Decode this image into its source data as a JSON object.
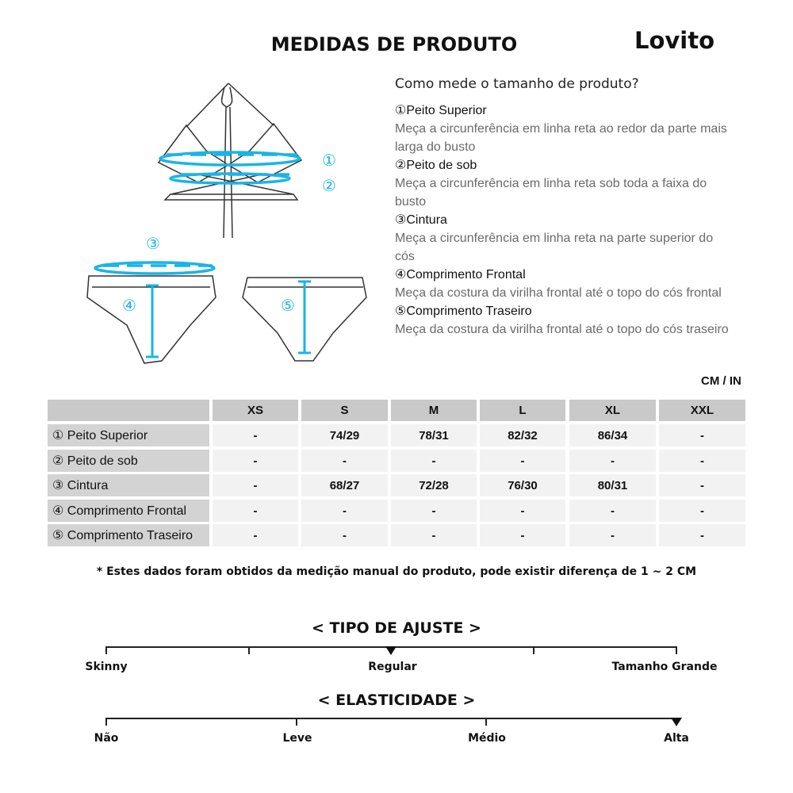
{
  "title": "MEDIDAS DE PRODUTO",
  "brand": "Lovito",
  "guide": {
    "question": "Como mede o tamanho de produto?",
    "items": [
      {
        "name": "①Peito Superior",
        "desc": "Meça a circunferência em linha reta ao redor da parte mais larga do busto"
      },
      {
        "name": "②Peito de sob",
        "desc": "Meça a circunferência em linha reta sob toda a faixa do busto"
      },
      {
        "name": "③Cintura",
        "desc": "Meça a circunferência em linha reta na parte superior do cós"
      },
      {
        "name": "④Comprimento Frontal",
        "desc": "Meça da costura da virilha frontal até o topo do cós frontal"
      },
      {
        "name": "⑤Comprimento Traseiro",
        "desc": "Meça da costura da virilha frontal até o topo do cós traseiro"
      }
    ]
  },
  "diagram_markers": [
    "①",
    "②",
    "③",
    "④",
    "⑤"
  ],
  "unit": "CM / IN",
  "table": {
    "columns": [
      "XS",
      "S",
      "M",
      "L",
      "XL",
      "XXL"
    ],
    "rows": [
      {
        "label": "① Peito Superior",
        "values": [
          "-",
          "74/29",
          "78/31",
          "82/32",
          "86/34",
          "-"
        ]
      },
      {
        "label": "② Peito de sob",
        "values": [
          "-",
          "-",
          "-",
          "-",
          "-",
          "-"
        ]
      },
      {
        "label": "③ Cintura",
        "values": [
          "-",
          "68/27",
          "72/28",
          "76/30",
          "80/31",
          "-"
        ]
      },
      {
        "label": "④ Comprimento Frontal",
        "values": [
          "-",
          "-",
          "-",
          "-",
          "-",
          "-"
        ]
      },
      {
        "label": "⑤ Comprimento Traseiro",
        "values": [
          "-",
          "-",
          "-",
          "-",
          "-",
          "-"
        ]
      }
    ]
  },
  "note": "* Estes dados foram obtidos da medição manual do produto, pode existir diferença de 1 ~ 2 CM",
  "fit": {
    "title": "< TIPO DE AJUSTE >",
    "labels": [
      "Skinny",
      "Regular",
      "Tamanho Grande"
    ],
    "selected": "Regular"
  },
  "elasticity": {
    "title": "< ELASTICIDADE >",
    "labels": [
      "Não",
      "Leve",
      "Médio",
      "Alta"
    ],
    "selected": "Alta"
  },
  "accent_color": "#19b4e8"
}
